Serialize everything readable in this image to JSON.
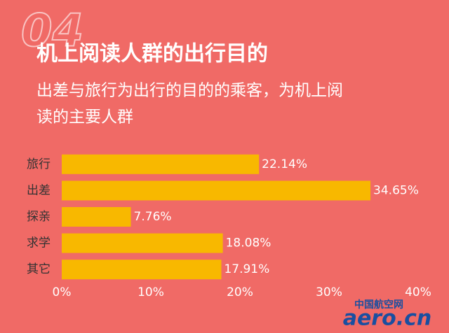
{
  "chart_data": {
    "type": "barh",
    "section_number": "04",
    "title": "机上阅读人群的出行目的",
    "subtitle": [
      "出差与旅行为出行的目的的乘客，为机上阅",
      "读的主要人群"
    ],
    "categories": [
      "旅行",
      "出差",
      "探亲",
      "求学",
      "其它"
    ],
    "values": [
      22.14,
      34.65,
      7.76,
      18.08,
      17.91
    ],
    "value_labels": [
      "22.14%",
      "34.65%",
      "7.76%",
      "18.08%",
      "17.91%"
    ],
    "color": "#f8b800",
    "xlim": [
      0,
      40
    ],
    "xticks": [
      {
        "value": 0,
        "label": "0%"
      },
      {
        "value": 10,
        "label": "10%"
      },
      {
        "value": 20,
        "label": "20%"
      },
      {
        "value": 30,
        "label": "30%"
      },
      {
        "value": 40,
        "label": "40%"
      }
    ],
    "grid": false,
    "watermark_title": "中国航空网",
    "watermark_logo": "aero.cn"
  }
}
